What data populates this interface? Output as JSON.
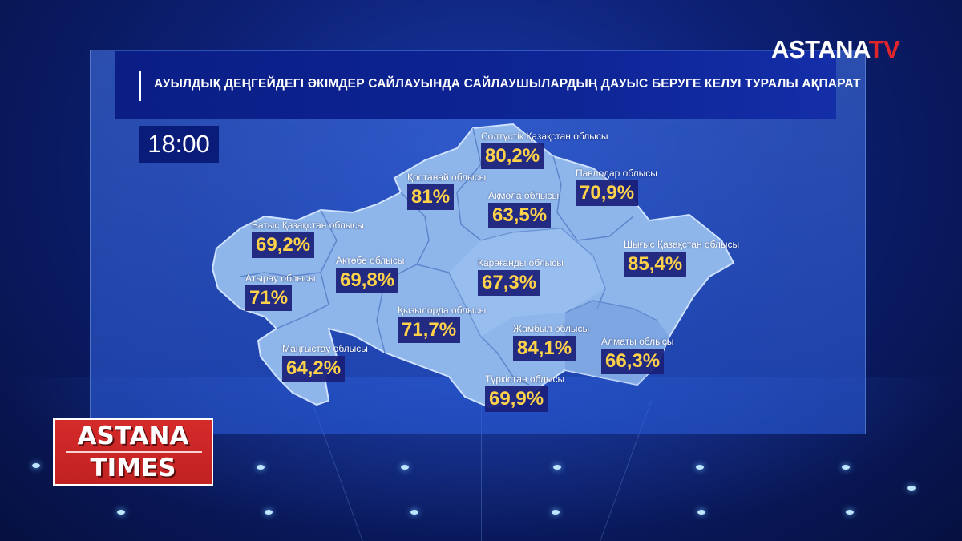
{
  "broadcaster": {
    "logo_main": "ASTANA",
    "logo_suffix": "TV"
  },
  "title": "АУЫЛДЫҚ ДЕҢГЕЙДЕГІ ӘКІМДЕР САЙЛАУЫНДА САЙЛАУШЫЛАРДЫҢ ДАУЫС БЕРУГЕ КЕЛУІ ТУРАЛЫ АҚПАРАТ",
  "time": "18:00",
  "regions": [
    {
      "name": "Солтүстік Қазақстан облысы",
      "value": "80,2%"
    },
    {
      "name": "Қостанай облысы",
      "value": "81%"
    },
    {
      "name": "Ақмола облысы",
      "value": "63,5%"
    },
    {
      "name": "Павлодар облысы",
      "value": "70,9%"
    },
    {
      "name": "Батыс Қазақстан облысы",
      "value": "69,2%"
    },
    {
      "name": "Ақтөбе облысы",
      "value": "69,8%"
    },
    {
      "name": "Атырау облысы",
      "value": "71%"
    },
    {
      "name": "Қарағанды облысы",
      "value": "67,3%"
    },
    {
      "name": "Шығыс Қазақстан облысы",
      "value": "85,4%"
    },
    {
      "name": "Қызылорда облысы",
      "value": "71,7%"
    },
    {
      "name": "Маңғыстау облысы",
      "value": "64,2%"
    },
    {
      "name": "Жамбыл облысы",
      "value": "84,1%"
    },
    {
      "name": "Алматы облысы",
      "value": "66,3%"
    },
    {
      "name": "Түркістан облысы",
      "value": "69,9%"
    }
  ],
  "program_badge": {
    "line1": "ASTANA",
    "line2": "TIMES"
  },
  "colors": {
    "background": "#0c1f72",
    "map_fill": "#8fb6ea",
    "value_text": "#ffd24a",
    "badge_red": "#c22222",
    "logo_red": "#e0262b"
  }
}
